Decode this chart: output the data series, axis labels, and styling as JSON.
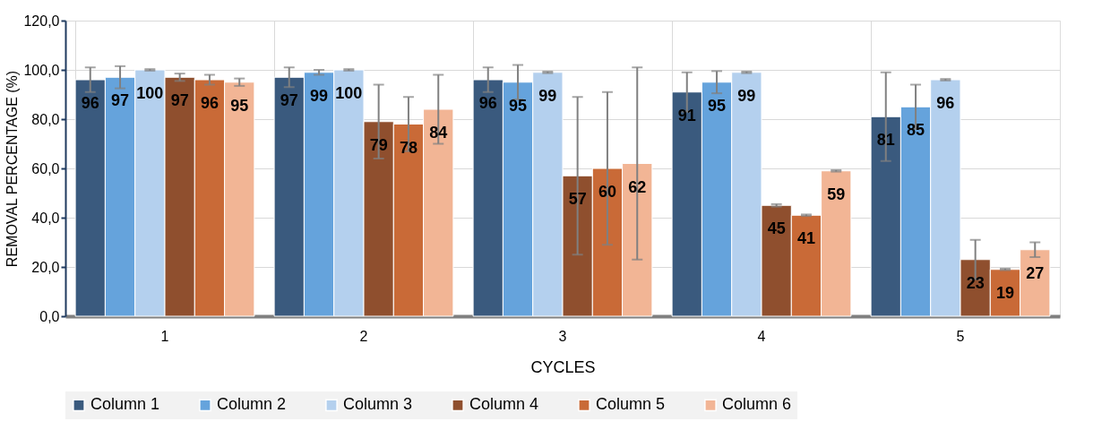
{
  "chart_data": {
    "type": "bar",
    "xlabel": "CYCLES",
    "ylabel": "REMOVAL PERCENTAGE (%)",
    "categories": [
      "1",
      "2",
      "3",
      "4",
      "5"
    ],
    "series": [
      {
        "name": "Column 1",
        "color": "#3a5a7e",
        "values": [
          96,
          97,
          96,
          91,
          81
        ],
        "errors": [
          5,
          4,
          5,
          8,
          18
        ]
      },
      {
        "name": "Column 2",
        "color": "#65a3dc",
        "values": [
          97,
          99,
          95,
          95,
          85
        ],
        "errors": [
          4.5,
          1,
          7,
          4.5,
          9
        ]
      },
      {
        "name": "Column 3",
        "color": "#b4d0ee",
        "values": [
          100,
          100,
          99,
          99,
          96
        ],
        "errors": [
          0.3,
          0.3,
          0.3,
          0.3,
          0.3
        ]
      },
      {
        "name": "Column 4",
        "color": "#8f4f2e",
        "values": [
          97,
          79,
          57,
          45,
          23
        ],
        "errors": [
          1.5,
          15,
          32,
          0.5,
          8
        ]
      },
      {
        "name": "Column 5",
        "color": "#c96a37",
        "values": [
          96,
          78,
          60,
          41,
          19
        ],
        "errors": [
          2,
          11,
          31,
          0.3,
          0.3
        ]
      },
      {
        "name": "Column 6",
        "color": "#f2b595",
        "values": [
          95,
          84,
          62,
          59,
          27
        ],
        "errors": [
          1.5,
          14,
          39,
          0.3,
          3
        ]
      }
    ],
    "ylim": [
      0,
      120
    ],
    "yticks": [
      {
        "value": 0,
        "label": "0,0"
      },
      {
        "value": 20,
        "label": "20,0"
      },
      {
        "value": 40,
        "label": "40,0"
      },
      {
        "value": 60,
        "label": "60,0"
      },
      {
        "value": 80,
        "label": "80,0"
      },
      {
        "value": 100,
        "label": "100,0"
      },
      {
        "value": 120,
        "label": "120,0"
      }
    ],
    "data_labels": true,
    "grid": true,
    "legend": "bottom"
  }
}
